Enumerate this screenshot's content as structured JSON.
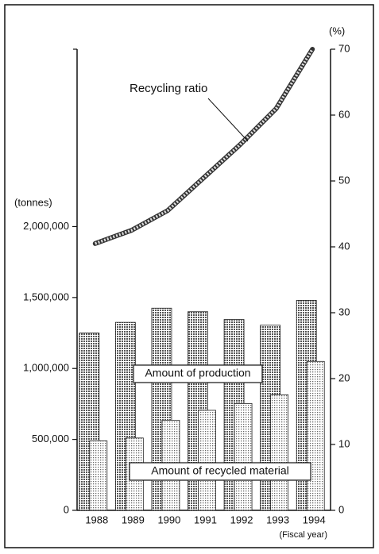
{
  "chart_data": {
    "type": "bar",
    "categories": [
      "1988",
      "1989",
      "1990",
      "1991",
      "1992",
      "1993",
      "1994"
    ],
    "x_label": "(Fiscal year)",
    "y_label": "(tonnes)",
    "y2_label": "(%)",
    "ylim": [
      0,
      3250000
    ],
    "yticks": [
      0,
      {
        "value": 500000,
        "label": "500,000"
      },
      {
        "value": 1000000,
        "label": "1,000,000"
      },
      {
        "value": 1500000,
        "label": "1,500,000"
      },
      {
        "value": 2000000,
        "label": "2,000,000"
      }
    ],
    "y2lim": [
      0,
      70
    ],
    "y2ticks": [
      0,
      10,
      20,
      30,
      40,
      50,
      60,
      70
    ],
    "series": [
      {
        "name": "Amount of production",
        "type": "bar",
        "color": "#555555",
        "axis": "y",
        "values": [
          1250000,
          1325000,
          1425000,
          1400000,
          1345000,
          1305000,
          1480000
        ]
      },
      {
        "name": "Amount of recycled material",
        "type": "bar",
        "color": "#9a9a9a",
        "axis": "y",
        "values": [
          490000,
          510000,
          635000,
          705000,
          753000,
          815000,
          1050000
        ]
      },
      {
        "name": "Recycling ratio",
        "type": "line",
        "color": "#777777",
        "axis": "y2",
        "values": [
          40.5,
          42.5,
          45.5,
          50.5,
          55.5,
          61,
          70
        ]
      }
    ]
  }
}
